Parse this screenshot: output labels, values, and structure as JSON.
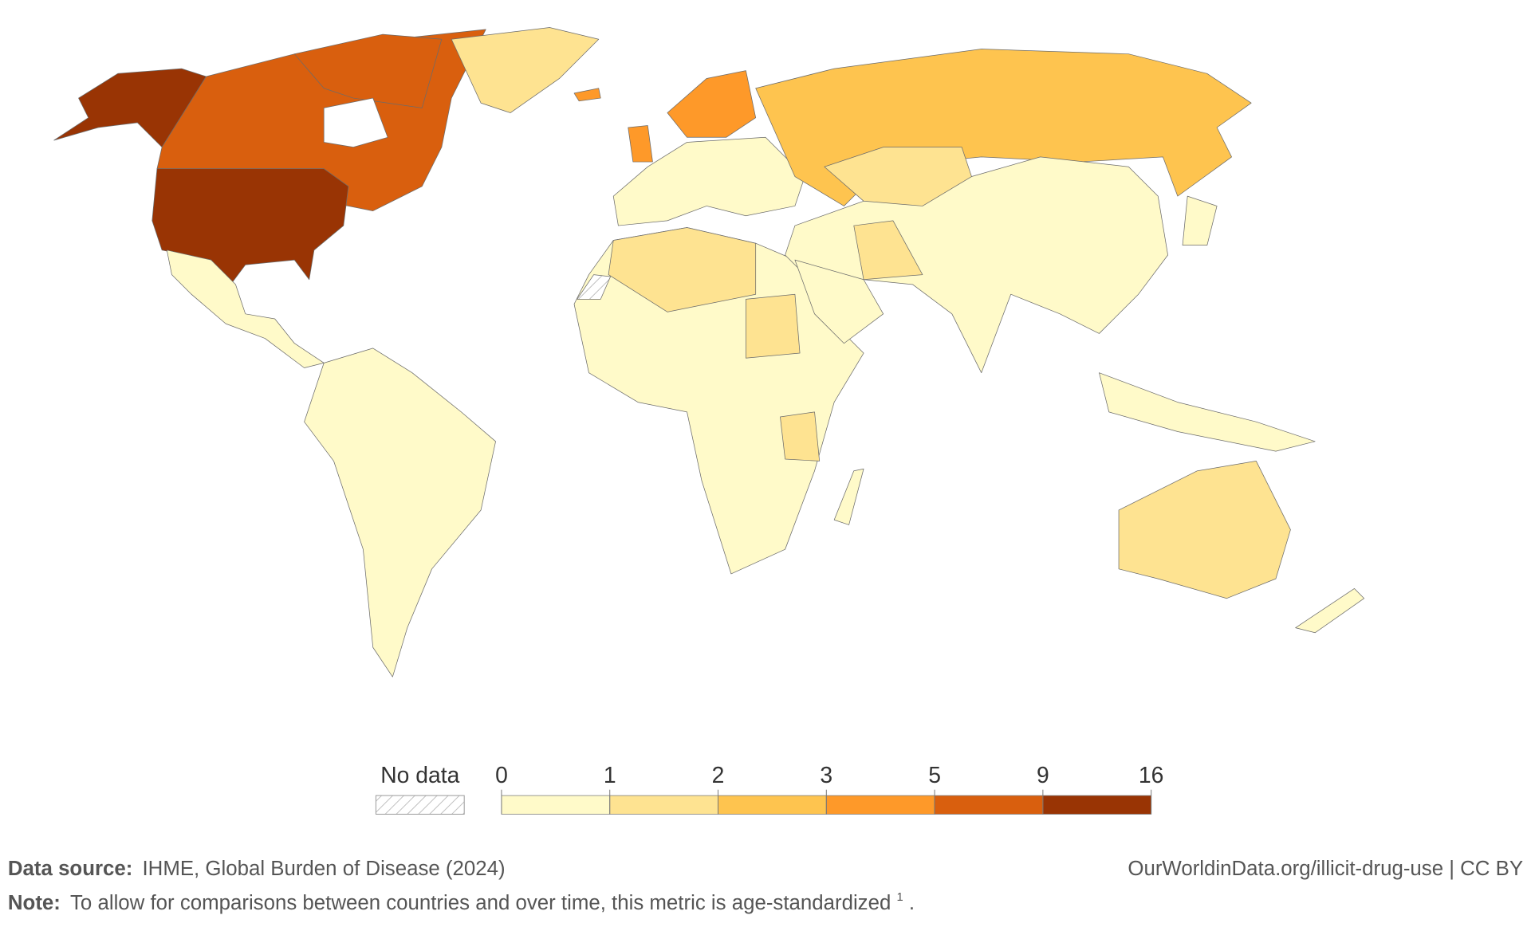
{
  "legend": {
    "no_data_label": "No data",
    "bins": [
      0,
      1,
      2,
      3,
      5,
      9,
      16
    ],
    "colors": [
      "#fffac9",
      "#fee391",
      "#fec44f",
      "#fe9929",
      "#d95f0e",
      "#993404"
    ]
  },
  "footer": {
    "source_label": "Data source:",
    "source_text": "IHME, Global Burden of Disease (2024)",
    "credit": "OurWorldinData.org/illicit-drug-use | CC BY",
    "note_label": "Note:",
    "note_text": "To allow for comparisons between countries and over time, this metric is age-standardized",
    "note_footnote": "1",
    "note_end": "."
  }
}
